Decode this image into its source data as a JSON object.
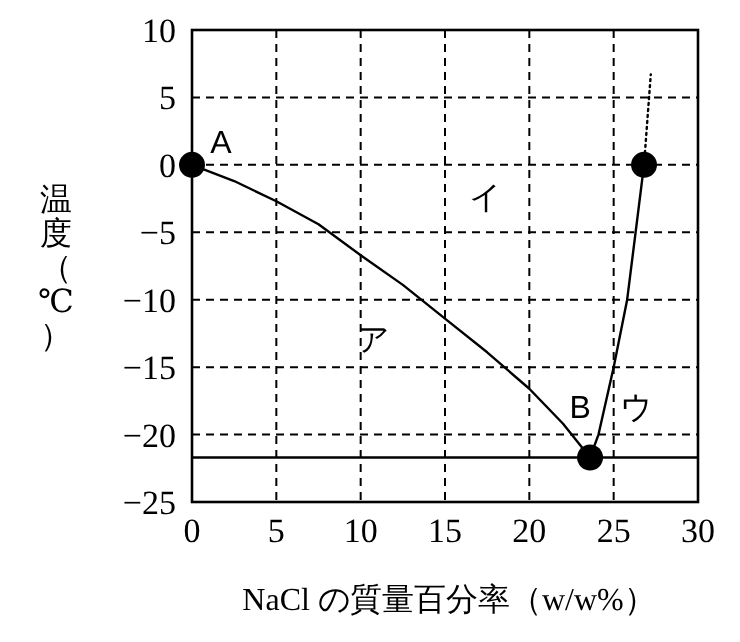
{
  "chart_data": {
    "type": "line",
    "xlabel": "NaCl の質量百分率（w/w%）",
    "ylabel": "温度（℃）",
    "xlim": [
      0,
      30
    ],
    "ylim": [
      -25,
      10
    ],
    "xticks": [
      0,
      5,
      10,
      15,
      20,
      25,
      30
    ],
    "yticks": [
      -25,
      -20,
      -15,
      -10,
      -5,
      0,
      5,
      10
    ],
    "grid": true,
    "series": [
      {
        "type": "line",
        "color": "#000000",
        "line_style": "solid",
        "x": [
          0,
          2.5,
          5,
          7.5,
          10,
          12.5,
          15,
          17.5,
          20,
          22,
          23.6
        ],
        "values": [
          0,
          -1.2,
          -2.7,
          -4.4,
          -6.7,
          -8.9,
          -11.4,
          -13.9,
          -16.6,
          -19.2,
          -21.7
        ]
      },
      {
        "type": "line",
        "color": "#000000",
        "line_style": "solid",
        "x": [
          23.6,
          24.1,
          25.0,
          25.8,
          26.3,
          26.8
        ],
        "values": [
          -21.7,
          -20,
          -15,
          -10,
          -5,
          0
        ]
      },
      {
        "type": "line",
        "color": "#000000",
        "line_style": "dotted",
        "x": [
          26.8,
          27.2
        ],
        "values": [
          0,
          6.7
        ]
      },
      {
        "type": "scatter",
        "color": "#000000",
        "marker": "circle",
        "x": [
          0,
          23.6,
          26.8
        ],
        "values": [
          0,
          -21.7,
          0
        ]
      }
    ],
    "ref_lines": [
      {
        "axis": "y",
        "value": -21.7,
        "color": "#000000",
        "line_style": "solid"
      }
    ],
    "annotations": [
      "A",
      "イ",
      "ア",
      "B",
      "ウ"
    ]
  }
}
